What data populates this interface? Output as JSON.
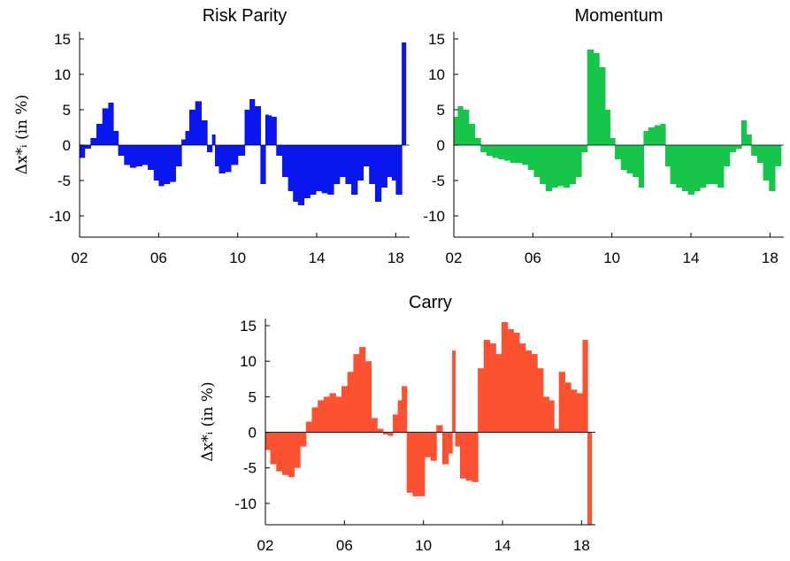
{
  "chart_data": [
    {
      "type": "bar",
      "title": "Risk Parity",
      "ylabel": "Δx*ᵢ (in %)",
      "color": "#0a16f0",
      "xlim": [
        2002.0,
        2018.7
      ],
      "ylim": [
        -13,
        16
      ],
      "xticks": [
        "02",
        "06",
        "10",
        "14",
        "18"
      ],
      "yticks": [
        "15",
        "10",
        "5",
        "0",
        "-5",
        "-10"
      ],
      "x": [
        2002.1,
        2002.4,
        2002.7,
        2003.0,
        2003.3,
        2003.6,
        2003.8,
        2004.1,
        2004.4,
        2004.7,
        2005.0,
        2005.3,
        2005.6,
        2005.9,
        2006.1,
        2006.4,
        2006.7,
        2007.0,
        2007.3,
        2007.4,
        2007.7,
        2008.0,
        2008.3,
        2008.6,
        2008.8,
        2008.9,
        2009.2,
        2009.5,
        2009.8,
        2010.2,
        2010.5,
        2010.7,
        2011.0,
        2011.3,
        2011.5,
        2011.6,
        2011.8,
        2012.1,
        2012.4,
        2012.7,
        2012.9,
        2013.2,
        2013.5,
        2013.8,
        2014.1,
        2014.4,
        2014.7,
        2015.0,
        2015.3,
        2015.6,
        2015.9,
        2016.2,
        2016.5,
        2016.8,
        2017.1,
        2017.4,
        2017.7,
        2017.9,
        2018.1,
        2018.2,
        2018.4
      ],
      "values": [
        -1.8,
        -0.5,
        1.0,
        3.0,
        5.2,
        6.0,
        2.0,
        -1.5,
        -2.8,
        -3.2,
        -3.0,
        -2.8,
        -3.5,
        -5.0,
        -5.8,
        -5.5,
        -5.2,
        -3.0,
        0.8,
        2.0,
        5.0,
        6.2,
        3.5,
        -1.0,
        1.5,
        -3.0,
        -4.0,
        -3.8,
        -2.8,
        -1.5,
        5.0,
        6.5,
        5.5,
        -5.5,
        4.3,
        4.2,
        4.0,
        -1.5,
        -4.5,
        -6.5,
        -8.0,
        -8.5,
        -7.5,
        -7.0,
        -6.5,
        -6.8,
        -7.0,
        -5.5,
        -4.5,
        -5.5,
        -7.0,
        -5.0,
        -3.0,
        -5.5,
        -8.0,
        -6.0,
        -4.5,
        -5.0,
        -7.0,
        -7.0,
        14.5
      ]
    },
    {
      "type": "bar",
      "title": "Momentum",
      "ylabel": "",
      "color": "#16c64a",
      "xlim": [
        2002.0,
        2018.7
      ],
      "ylim": [
        -13,
        16
      ],
      "xticks": [
        "02",
        "06",
        "10",
        "14",
        "18"
      ],
      "yticks": [
        "15",
        "10",
        "5",
        "0",
        "-5",
        "-10"
      ],
      "x": [
        2002.1,
        2002.3,
        2002.6,
        2002.9,
        2003.2,
        2003.5,
        2003.8,
        2004.1,
        2004.4,
        2004.7,
        2005.0,
        2005.3,
        2005.6,
        2005.9,
        2006.2,
        2006.5,
        2006.8,
        2007.1,
        2007.4,
        2007.7,
        2008.0,
        2008.3,
        2008.6,
        2008.9,
        2009.2,
        2009.5,
        2009.8,
        2010.0,
        2010.3,
        2010.6,
        2010.9,
        2011.2,
        2011.5,
        2011.7,
        2012.0,
        2012.3,
        2012.6,
        2012.8,
        2013.1,
        2013.4,
        2013.7,
        2014.0,
        2014.3,
        2014.6,
        2014.9,
        2015.2,
        2015.5,
        2015.8,
        2016.1,
        2016.4,
        2016.7,
        2016.9,
        2017.2,
        2017.5,
        2017.8,
        2018.1,
        2018.4
      ],
      "values": [
        4.0,
        5.5,
        5.0,
        3.0,
        1.0,
        -1.0,
        -1.5,
        -1.8,
        -2.0,
        -2.2,
        -2.5,
        -2.5,
        -2.8,
        -3.5,
        -4.5,
        -5.5,
        -6.5,
        -6.0,
        -5.8,
        -6.0,
        -5.5,
        -4.5,
        -1.0,
        13.5,
        13.0,
        11.0,
        5.0,
        1.0,
        -2.0,
        -3.5,
        -4.0,
        -4.5,
        -6.0,
        2.0,
        2.5,
        2.8,
        3.0,
        -3.0,
        -5.5,
        -6.0,
        -6.5,
        -7.0,
        -6.5,
        -6.0,
        -5.5,
        -5.5,
        -6.0,
        -3.0,
        -1.0,
        -0.5,
        3.5,
        1.5,
        -1.5,
        -2.5,
        -5.0,
        -6.5,
        -3.0
      ]
    },
    {
      "type": "bar",
      "title": "Carry",
      "ylabel": "Δx*ᵢ (in %)",
      "color": "#fc5232",
      "xlim": [
        2002.0,
        2018.7
      ],
      "ylim": [
        -13,
        16
      ],
      "xticks": [
        "02",
        "06",
        "10",
        "14",
        "18"
      ],
      "yticks": [
        "15",
        "10",
        "5",
        "0",
        "-5",
        "-10"
      ],
      "x": [
        2002.1,
        2002.4,
        2002.7,
        2003.0,
        2003.3,
        2003.6,
        2003.9,
        2004.2,
        2004.5,
        2004.8,
        2005.1,
        2005.4,
        2005.7,
        2006.0,
        2006.3,
        2006.6,
        2006.9,
        2007.2,
        2007.5,
        2007.8,
        2008.1,
        2008.3,
        2008.6,
        2008.8,
        2009.0,
        2009.3,
        2009.6,
        2009.9,
        2010.2,
        2010.5,
        2010.8,
        2011.1,
        2011.4,
        2011.5,
        2011.7,
        2012.0,
        2012.3,
        2012.6,
        2012.9,
        2013.2,
        2013.5,
        2013.8,
        2014.1,
        2014.4,
        2014.7,
        2015.0,
        2015.3,
        2015.6,
        2015.9,
        2016.2,
        2016.5,
        2016.7,
        2017.0,
        2017.3,
        2017.6,
        2017.9,
        2018.2,
        2018.4
      ],
      "values": [
        -2.5,
        -4.5,
        -5.5,
        -6.0,
        -6.3,
        -5.0,
        -2.0,
        1.5,
        3.5,
        4.5,
        5.0,
        5.5,
        5.0,
        6.5,
        8.5,
        11.0,
        12.0,
        10.0,
        2.0,
        0.5,
        -0.3,
        -0.5,
        2.5,
        4.5,
        6.5,
        -8.5,
        -9.0,
        -9.0,
        -3.5,
        -4.0,
        1.0,
        -4.5,
        -3.0,
        11.5,
        -2.0,
        -6.5,
        -6.8,
        -7.0,
        9.0,
        13.0,
        12.5,
        11.0,
        15.5,
        14.5,
        14.0,
        12.5,
        11.5,
        11.0,
        9.0,
        5.0,
        4.5,
        0.5,
        8.5,
        7.0,
        6.0,
        5.5,
        13.0,
        -13.0
      ]
    }
  ]
}
